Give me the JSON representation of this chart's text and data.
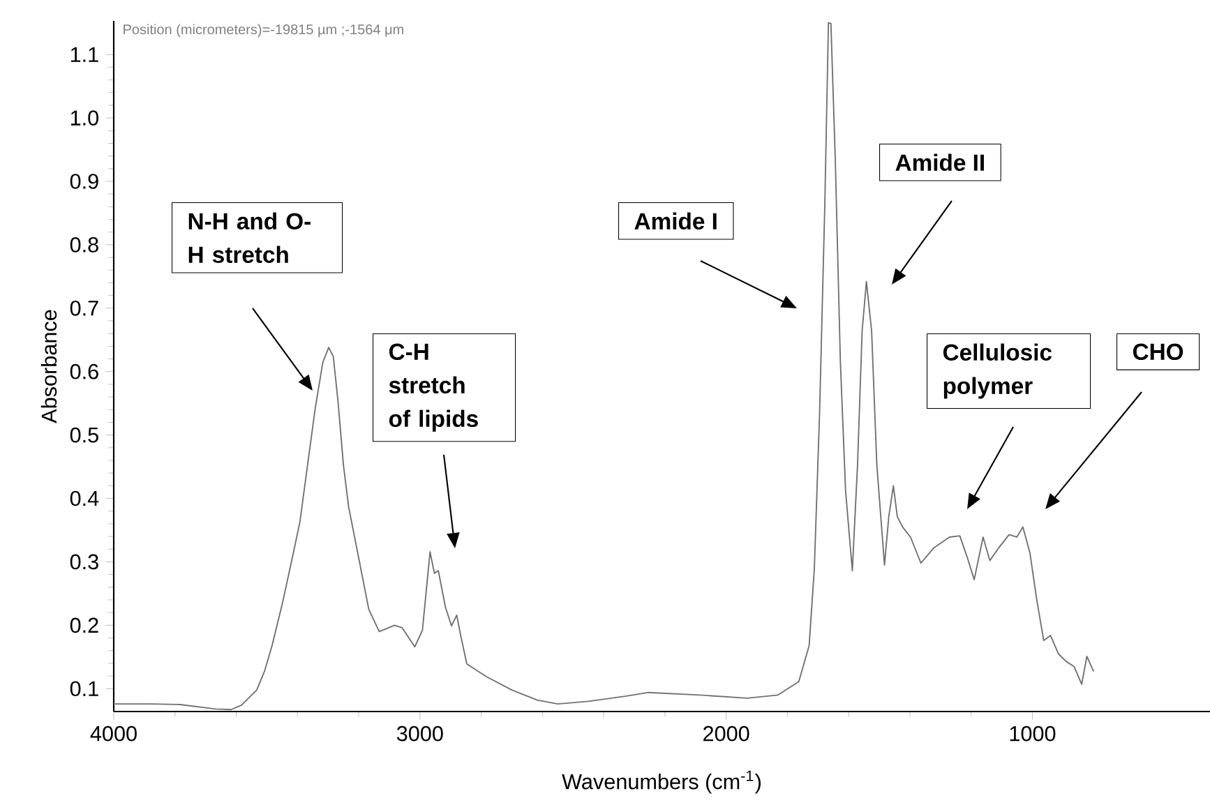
{
  "chart_data": {
    "type": "line",
    "xlabel": "Wavenumbers (cm$^{-1}$)",
    "ylabel": "Absorbance",
    "xlim": [
      4000,
      420
    ],
    "ylim": [
      0.064,
      1.153
    ],
    "xticks": [
      4000,
      3000,
      2000,
      1000
    ],
    "yticks": [
      0.1,
      0.2,
      0.3,
      0.4,
      0.5,
      0.6,
      0.7,
      0.8,
      0.9,
      {
        "value": 1.0,
        "label": "1.0"
      },
      1.1
    ],
    "color": "#707070",
    "grid": false,
    "x": [
      4000,
      3883,
      3783,
      3667,
      3617,
      3583,
      3533,
      3508,
      3483,
      3450,
      3417,
      3392,
      3367,
      3342,
      3317,
      3298,
      3283,
      3267,
      3250,
      3233,
      3200,
      3167,
      3133,
      3083,
      3058,
      3017,
      2992,
      2967,
      2953,
      2940,
      2917,
      2897,
      2880,
      2867,
      2847,
      2783,
      2700,
      2617,
      2550,
      2450,
      2330,
      2254,
      2085,
      1932,
      1831,
      1763,
      1729,
      1712,
      1695,
      1678,
      1666,
      1658,
      1644,
      1627,
      1610,
      1588,
      1571,
      1556,
      1542,
      1525,
      1508,
      1483,
      1469,
      1454,
      1441,
      1424,
      1398,
      1364,
      1322,
      1271,
      1237,
      1212,
      1190,
      1161,
      1139,
      1110,
      1076,
      1051,
      1031,
      1008,
      986,
      963,
      941,
      915,
      890,
      864,
      839,
      822,
      800
    ],
    "values": [
      0.076,
      0.076,
      0.075,
      0.068,
      0.067,
      0.074,
      0.098,
      0.127,
      0.168,
      0.233,
      0.306,
      0.363,
      0.453,
      0.542,
      0.615,
      0.638,
      0.624,
      0.55,
      0.453,
      0.387,
      0.306,
      0.225,
      0.19,
      0.2,
      0.196,
      0.166,
      0.192,
      0.316,
      0.282,
      0.286,
      0.229,
      0.199,
      0.216,
      0.184,
      0.139,
      0.119,
      0.098,
      0.082,
      0.076,
      0.08,
      0.088,
      0.094,
      0.09,
      0.085,
      0.09,
      0.111,
      0.168,
      0.29,
      0.534,
      0.86,
      1.15,
      1.149,
      0.941,
      0.615,
      0.412,
      0.286,
      0.453,
      0.664,
      0.742,
      0.664,
      0.453,
      0.295,
      0.371,
      0.42,
      0.371,
      0.355,
      0.339,
      0.298,
      0.322,
      0.339,
      0.341,
      0.306,
      0.272,
      0.339,
      0.302,
      0.322,
      0.343,
      0.339,
      0.355,
      0.314,
      0.241,
      0.176,
      0.184,
      0.155,
      0.143,
      0.135,
      0.107,
      0.151,
      0.127
    ],
    "annotations": [
      "Position (micrometers)=-19815 µm ;-1564 μm",
      "N-H and O-H stretch",
      "C-H stretch of lipids",
      "Amide I",
      "Amide II",
      "Cellulosic polymer",
      "CHO"
    ]
  }
}
